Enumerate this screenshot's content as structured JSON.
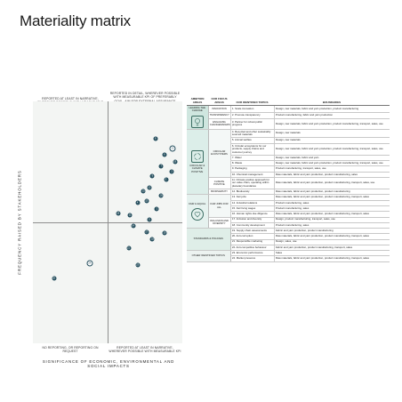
{
  "title": "Materiality matrix",
  "matrix": {
    "y_axis_label": "Frequency raised by stakeholders",
    "x_axis_label": "Significance of economic, environmental and social impacts",
    "quadrants": {
      "top_left": "Reported at least in narrative, wherever possible with measurable KPI",
      "top_right": "Reported in detail, wherever possible with measurable KPI of preferably goal, aim for external assurance wherever useful",
      "bottom_left": "No reporting, or reporting on request",
      "bottom_right": "Reported at least in narrative, wherever possible with measurable KPI"
    },
    "points": [
      {
        "id": "8",
        "x": 0.82,
        "y": 0.845,
        "style": "fill"
      },
      {
        "id": "22",
        "x": 0.935,
        "y": 0.805,
        "style": "ring"
      },
      {
        "id": "6",
        "x": 0.88,
        "y": 0.78,
        "style": "fill"
      },
      {
        "id": "19",
        "x": 0.95,
        "y": 0.75,
        "style": "fill"
      },
      {
        "id": "7",
        "x": 0.86,
        "y": 0.73,
        "style": "fill"
      },
      {
        "id": "2",
        "x": 0.93,
        "y": 0.71,
        "style": "fill"
      },
      {
        "id": "9",
        "x": 0.8,
        "y": 0.69,
        "style": "fill"
      },
      {
        "id": "3",
        "x": 0.89,
        "y": 0.675,
        "style": "fill"
      },
      {
        "id": "12",
        "x": 0.78,
        "y": 0.645,
        "style": "fill"
      },
      {
        "id": "15",
        "x": 0.74,
        "y": 0.63,
        "style": "fill"
      },
      {
        "id": "20",
        "x": 0.86,
        "y": 0.61,
        "style": "fill"
      },
      {
        "id": "13",
        "x": 0.76,
        "y": 0.59,
        "style": "fill"
      },
      {
        "id": "4",
        "x": 0.7,
        "y": 0.58,
        "style": "fill"
      },
      {
        "id": "1",
        "x": 0.83,
        "y": 0.555,
        "style": "fill"
      },
      {
        "id": "16",
        "x": 0.57,
        "y": 0.535,
        "style": "fill"
      },
      {
        "id": "11",
        "x": 0.65,
        "y": 0.53,
        "style": "fill"
      },
      {
        "id": "5",
        "x": 0.78,
        "y": 0.51,
        "style": "fill"
      },
      {
        "id": "14",
        "x": 0.67,
        "y": 0.485,
        "style": "fill"
      },
      {
        "id": "17",
        "x": 0.76,
        "y": 0.46,
        "style": "fill"
      },
      {
        "id": "10",
        "x": 0.88,
        "y": 0.455,
        "style": "fill"
      },
      {
        "id": "18",
        "x": 0.8,
        "y": 0.43,
        "style": "fill"
      },
      {
        "id": "21",
        "x": 0.64,
        "y": 0.395,
        "style": "fill"
      },
      {
        "id": "24",
        "x": 0.38,
        "y": 0.33,
        "style": "ring"
      },
      {
        "id": "23",
        "x": 0.7,
        "y": 0.325,
        "style": "fill"
      },
      {
        "id": "25",
        "x": 0.14,
        "y": 0.27,
        "style": "fill"
      }
    ]
  },
  "table": {
    "headers": {
      "ambition": "Ambition areas",
      "focus": "Our focus areas",
      "topics": "Our identified topics",
      "boundaries": "Boundaries"
    },
    "areas": {
      "leading": "Leading the change",
      "circular": "Circular & climate positive",
      "fair": "Fair & equal",
      "standards": "Standards & policies",
      "other": "Other identified topics"
    },
    "focus": {
      "innovation": "Innovation",
      "transparency": "Transparency",
      "engaging": "Engaging changemakers",
      "circular_ecosystems": "Circular ecosystems",
      "climate_positive": "Climate positive",
      "biodiversity": "Biodiversity",
      "fair_jobs": "Fair jobs for all",
      "inclusion": "Inclusion and diversity"
    },
    "rows": [
      {
        "topic": "1. Scale innovation",
        "boundary": "Design, raw materials, fabric and yarn production, product manufacturing"
      },
      {
        "topic": "2. Promote transparency",
        "boundary": "Product manufacturing, fabric and yarn production"
      },
      {
        "topic": "3. Partner for robust public progress",
        "boundary": "Design, raw materials, fabric and yarn production, product manufacturing, transport, sales, use"
      },
      {
        "topic": "4. Recycled and other sustainably sourced materials",
        "boundary": "Design, raw materials"
      },
      {
        "topic": "5. Animal welfare",
        "boundary": "Design, raw materials"
      },
      {
        "topic": "6. Circular ecosystems for our products, supply chains and customer journey",
        "boundary": "Design, raw materials, fabric and yarn production, product manufacturing, transport, sales, use"
      },
      {
        "topic": "7. Water",
        "boundary": "Design, raw materials, fabric and yarn"
      },
      {
        "topic": "8. Waste",
        "boundary": "Design, raw materials, fabric and yarn production, product manufacturing, transport, sales, use"
      },
      {
        "topic": "9. Packaging",
        "boundary": "Product manufacturing, transport, sales, use"
      },
      {
        "topic": "10. Chemical management",
        "boundary": "Raw materials, fabric and yarn production, product manufacturing, sales"
      },
      {
        "topic": "11. Climate positive approach for our value chain, operating within planetary boundaries",
        "boundary": "Raw materials, fabric and yarn production, product manufacturing, transport, sales, use"
      },
      {
        "topic": "12. Biodiversity",
        "boundary": "Raw materials, fabric and yarn production, product manufacturing"
      },
      {
        "topic": "13. Fair jobs",
        "boundary": "Raw materials, fabric and yarn production, product manufacturing, transport, sales"
      },
      {
        "topic": "14. Industrial relations",
        "boundary": "Product manufacturing, sales"
      },
      {
        "topic": "15. Fair living wages",
        "boundary": "Product manufacturing, sales"
      },
      {
        "topic": "16. Human rights due diligence",
        "boundary": "Raw materials, fabric and yarn production, product manufacturing, transport, sales"
      },
      {
        "topic": "17. Inclusion and diversity",
        "boundary": "Design, product manufacturing, transport, sales, use"
      },
      {
        "topic": "18. Community development",
        "boundary": "Product manufacturing, sales"
      },
      {
        "topic": "19. Supply chain assessments",
        "boundary": "Fabric and yarn production, product manufacturing"
      },
      {
        "topic": "20. Anti-corruption",
        "boundary": "Raw materials, fabric and yarn production, product manufacturing, transport, sales"
      },
      {
        "topic": "21. Responsible marketing",
        "boundary": "Design, sales, use"
      },
      {
        "topic": "22. Anti-competitive behaviour",
        "boundary": "Fabric and yarn production, product manufacturing, transport, sales"
      },
      {
        "topic": "23. Economic performance",
        "boundary": "Sales"
      },
      {
        "topic": "24. Market presence",
        "boundary": "Raw materials, fabric and yarn production, product manufacturing, transport, sales"
      }
    ]
  }
}
